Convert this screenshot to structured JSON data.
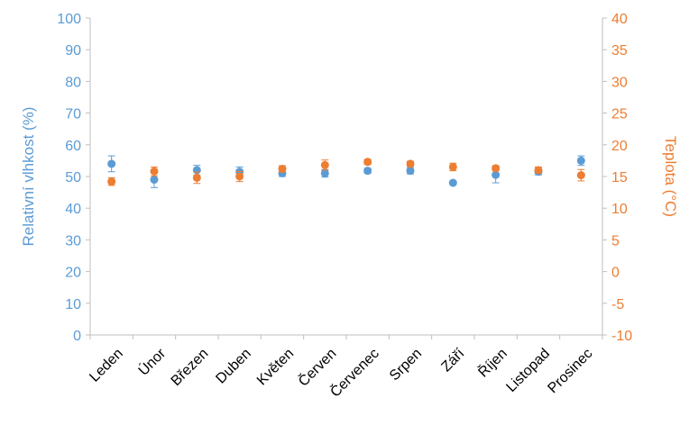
{
  "chart_data": {
    "type": "scatter",
    "categories": [
      "Leden",
      "Únor",
      "Březen",
      "Duben",
      "Květen",
      "Červen",
      "Červenec",
      "Srpen",
      "Září",
      "Říjen",
      "Listopad",
      "Prosinec"
    ],
    "series": [
      {
        "name": "",
        "axis": "left",
        "color": "#5b9bd5",
        "values": [
          54.0,
          49.0,
          52.0,
          51.5,
          51.0,
          51.0,
          51.8,
          51.8,
          48.0,
          50.5,
          51.5,
          55.0
        ],
        "errors": [
          2.5,
          2.5,
          1.5,
          1.5,
          1.0,
          1.2,
          0.8,
          1.0,
          0.5,
          2.5,
          1.0,
          1.5
        ]
      },
      {
        "name": "",
        "axis": "right",
        "color": "#ed7d31",
        "values": [
          14.2,
          15.8,
          14.8,
          15.0,
          16.2,
          16.8,
          17.3,
          17.0,
          16.5,
          16.3,
          16.0,
          15.2
        ],
        "errors": [
          0.6,
          0.7,
          0.9,
          0.8,
          0.5,
          0.8,
          0.4,
          0.4,
          0.6,
          0.4,
          0.5,
          0.9
        ]
      }
    ],
    "ylabel": "Relativní vlhkost (%)",
    "ylabel_right": "Teplota (°C)",
    "ylim": [
      0,
      100
    ],
    "ylim_right": [
      -10,
      40
    ],
    "yticks": [
      "0",
      "10",
      "20",
      "30",
      "40",
      "50",
      "60",
      "70",
      "80",
      "90",
      "100"
    ],
    "yticks_right": [
      "-10",
      "-5",
      "0",
      "5",
      "10",
      "15",
      "20",
      "25",
      "30",
      "35",
      "40"
    ],
    "grid": false,
    "legend": "none"
  }
}
